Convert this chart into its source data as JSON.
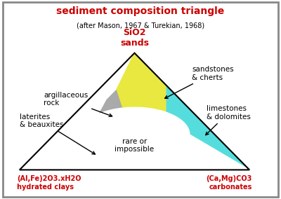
{
  "title": "sediment composition triangle",
  "subtitle": "(after Mason, 1967 & Turekian, 1968)",
  "title_color": "#cc0000",
  "subtitle_color": "#000000",
  "background_color": "#ffffff",
  "border_color": "#888888",
  "top_label": "SiO2\nsands",
  "bottom_left_label": "(Al,Fe)2O3.xH2O\nhydrated clays",
  "bottom_right_label": "(Ca,Mg)CO3\ncarbonates",
  "corner_label_color": "#cc0000",
  "sand_color": "#e8e840",
  "lime_color": "#55dddd",
  "arg_color": "#aaaaaa",
  "lat_color": "#cc88cc",
  "rare_color": "#ffffff",
  "figsize": [
    4.0,
    2.84
  ],
  "dpi": 100
}
